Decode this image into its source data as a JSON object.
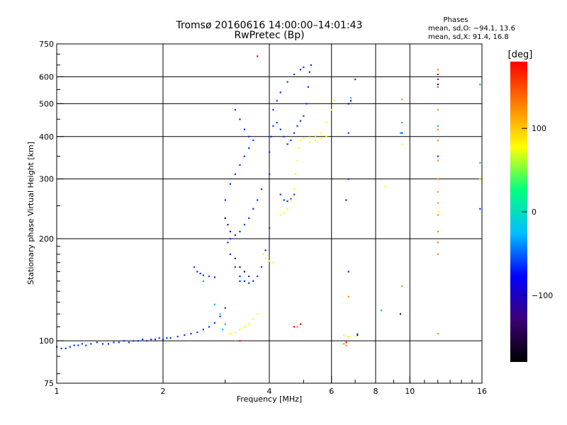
{
  "chart_data": {
    "type": "scatter",
    "title": "Tromsø 20160616 14:00:00–14:01:43",
    "subtitle": "RwPretec (Bp)",
    "xlabel": "Frequency [MHz]",
    "ylabel": "Stationary phase Virtual Height [km]",
    "x_scale": "log",
    "y_scale": "log",
    "xlim": [
      1,
      16
    ],
    "ylim": [
      75,
      750
    ],
    "x_ticks": [
      1,
      2,
      4,
      6,
      8,
      10,
      16
    ],
    "y_ticks": [
      75,
      100,
      200,
      300,
      400,
      500,
      600,
      750
    ],
    "grid": true,
    "phase_info": {
      "header": "Phases",
      "line_o": "mean, sd,O: −94.1, 13.6",
      "line_x": "mean, sd,X:  91.4, 16.8"
    },
    "colorbar": {
      "label": "[deg]",
      "range": [
        -180,
        180
      ],
      "ticks": [
        100,
        0,
        -100
      ],
      "colors": [
        "#000000",
        "#3c0078",
        "#0000ff",
        "#00bfff",
        "#00ff80",
        "#ffff00",
        "#ff8000",
        "#ff0000"
      ]
    },
    "series": [
      {
        "color": "#0033ff",
        "points": [
          [
            1.0,
            96
          ],
          [
            1.03,
            95
          ],
          [
            1.06,
            95
          ],
          [
            1.09,
            96
          ],
          [
            1.12,
            97
          ],
          [
            1.15,
            97
          ],
          [
            1.18,
            98
          ],
          [
            1.21,
            97
          ],
          [
            1.25,
            98
          ],
          [
            1.3,
            99
          ],
          [
            1.35,
            98
          ],
          [
            1.4,
            98
          ],
          [
            1.45,
            99
          ],
          [
            1.5,
            99
          ],
          [
            1.55,
            100
          ],
          [
            1.6,
            99
          ],
          [
            1.65,
            100
          ],
          [
            1.7,
            100
          ],
          [
            1.75,
            101
          ],
          [
            1.8,
            100
          ],
          [
            1.85,
            101
          ],
          [
            1.9,
            101
          ],
          [
            1.95,
            102
          ],
          [
            2.0,
            101
          ],
          [
            2.05,
            102
          ],
          [
            2.1,
            102
          ],
          [
            2.2,
            103
          ],
          [
            2.3,
            104
          ],
          [
            2.4,
            105
          ],
          [
            2.5,
            106
          ],
          [
            2.6,
            108
          ],
          [
            2.7,
            110
          ],
          [
            2.8,
            113
          ],
          [
            2.9,
            118
          ],
          [
            3.0,
            125
          ],
          [
            2.45,
            165
          ],
          [
            2.5,
            160
          ],
          [
            2.55,
            158
          ],
          [
            2.6,
            156
          ],
          [
            2.7,
            155
          ],
          [
            2.8,
            154
          ],
          [
            3.05,
            195
          ],
          [
            3.1,
            200
          ],
          [
            3.2,
            205
          ],
          [
            3.3,
            210
          ],
          [
            3.4,
            220
          ],
          [
            3.5,
            230
          ],
          [
            3.6,
            245
          ],
          [
            3.7,
            260
          ],
          [
            3.8,
            280
          ],
          [
            3.0,
            260
          ],
          [
            3.1,
            290
          ],
          [
            3.2,
            310
          ],
          [
            3.3,
            330
          ],
          [
            3.4,
            350
          ],
          [
            3.5,
            370
          ],
          [
            3.1,
            180
          ],
          [
            3.2,
            165
          ],
          [
            3.3,
            155
          ],
          [
            3.4,
            150
          ],
          [
            3.5,
            148
          ],
          [
            3.6,
            150
          ],
          [
            3.7,
            155
          ],
          [
            3.8,
            165
          ],
          [
            3.9,
            185
          ],
          [
            4.0,
            215
          ],
          [
            4.0,
            310
          ],
          [
            4.0,
            360
          ],
          [
            4.05,
            400
          ],
          [
            4.1,
            430
          ],
          [
            4.2,
            440
          ],
          [
            4.3,
            420
          ],
          [
            4.4,
            400
          ],
          [
            4.5,
            380
          ],
          [
            4.6,
            390
          ],
          [
            4.7,
            410
          ],
          [
            4.8,
            430
          ],
          [
            4.9,
            445
          ],
          [
            5.0,
            460
          ],
          [
            5.1,
            500
          ],
          [
            5.15,
            560
          ],
          [
            5.2,
            620
          ],
          [
            5.25,
            650
          ],
          [
            4.1,
            480
          ],
          [
            4.2,
            510
          ],
          [
            4.3,
            540
          ],
          [
            4.5,
            580
          ],
          [
            4.7,
            610
          ],
          [
            4.9,
            630
          ],
          [
            5.0,
            640
          ],
          [
            3.2,
            480
          ],
          [
            3.3,
            450
          ],
          [
            3.4,
            420
          ],
          [
            3.5,
            400
          ],
          [
            3.6,
            390
          ],
          [
            4.3,
            270
          ],
          [
            4.4,
            260
          ],
          [
            4.5,
            258
          ],
          [
            4.6,
            262
          ],
          [
            4.7,
            270
          ],
          [
            6.7,
            410
          ],
          [
            6.7,
            300
          ],
          [
            6.7,
            160
          ],
          [
            7.0,
            590
          ],
          [
            9.5,
            410
          ],
          [
            12.0,
            590
          ],
          [
            12.0,
            560
          ],
          [
            12.0,
            350
          ],
          [
            15.8,
            245
          ],
          [
            3.3,
            150
          ],
          [
            3.5,
            155
          ]
        ]
      },
      {
        "color": "#ffff00",
        "points": [
          [
            3.1,
            105
          ],
          [
            3.2,
            106
          ],
          [
            3.3,
            108
          ],
          [
            3.4,
            110
          ],
          [
            3.5,
            112
          ],
          [
            3.6,
            116
          ],
          [
            3.7,
            120
          ],
          [
            3.85,
            180
          ],
          [
            3.9,
            175
          ],
          [
            4.0,
            172
          ],
          [
            4.1,
            170
          ],
          [
            4.3,
            235
          ],
          [
            4.4,
            238
          ],
          [
            4.5,
            245
          ],
          [
            4.6,
            260
          ],
          [
            4.7,
            280
          ],
          [
            4.75,
            310
          ],
          [
            4.8,
            340
          ],
          [
            4.85,
            370
          ],
          [
            4.9,
            390
          ],
          [
            5.0,
            395
          ],
          [
            5.2,
            398
          ],
          [
            5.4,
            402
          ],
          [
            5.6,
            410
          ],
          [
            5.8,
            440
          ],
          [
            6.0,
            480
          ],
          [
            6.1,
            510
          ],
          [
            5.2,
            385
          ],
          [
            5.4,
            390
          ],
          [
            5.6,
            395
          ],
          [
            5.8,
            400
          ],
          [
            6.5,
            104
          ],
          [
            6.7,
            103
          ],
          [
            7.0,
            103
          ],
          [
            8.5,
            285
          ],
          [
            9.5,
            380
          ],
          [
            12.0,
            300
          ],
          [
            12.0,
            240
          ],
          [
            15.8,
            300
          ]
        ]
      },
      {
        "color": "#ff8c00",
        "points": [
          [
            3.2,
            100
          ],
          [
            4.8,
            110
          ],
          [
            6.6,
            97
          ],
          [
            6.7,
            135
          ],
          [
            9.5,
            145
          ],
          [
            12.0,
            630
          ],
          [
            12.0,
            560
          ],
          [
            12.0,
            480
          ],
          [
            12.0,
            420
          ],
          [
            12.0,
            390
          ],
          [
            12.0,
            340
          ],
          [
            12.0,
            300
          ],
          [
            12.0,
            275
          ],
          [
            12.0,
            255
          ],
          [
            12.0,
            235
          ],
          [
            12.0,
            210
          ],
          [
            12.0,
            195
          ],
          [
            12.0,
            180
          ],
          [
            12.0,
            105
          ],
          [
            9.5,
            515
          ],
          [
            6.5,
            98
          ]
        ]
      },
      {
        "color": "#ff0000",
        "points": [
          [
            3.3,
            100
          ],
          [
            3.7,
            690
          ],
          [
            4.7,
            110
          ],
          [
            4.9,
            112
          ],
          [
            6.6,
            99
          ],
          [
            12.0,
            610
          ]
        ]
      },
      {
        "color": "#00cc66",
        "points": [
          [
            7.1,
            105
          ],
          [
            9.5,
            440
          ],
          [
            12.0,
            430
          ],
          [
            15.8,
            570
          ],
          [
            15.8,
            335
          ]
        ]
      },
      {
        "color": "#00bbff",
        "points": [
          [
            2.6,
            150
          ],
          [
            2.8,
            128
          ],
          [
            2.9,
            120
          ],
          [
            3.0,
            112
          ],
          [
            2.95,
            108
          ],
          [
            6.8,
            520
          ],
          [
            8.3,
            123
          ],
          [
            9.4,
            410
          ]
        ]
      },
      {
        "color": "#3c0078",
        "points": [
          [
            3.0,
            230
          ],
          [
            3.05,
            220
          ],
          [
            3.1,
            210
          ],
          [
            3.2,
            175
          ],
          [
            3.3,
            165
          ],
          [
            3.4,
            160
          ],
          [
            6.6,
            260
          ],
          [
            6.7,
            500
          ],
          [
            6.8,
            510
          ],
          [
            7.1,
            104
          ],
          [
            9.4,
            120
          ],
          [
            12.0,
            570
          ]
        ]
      }
    ]
  }
}
